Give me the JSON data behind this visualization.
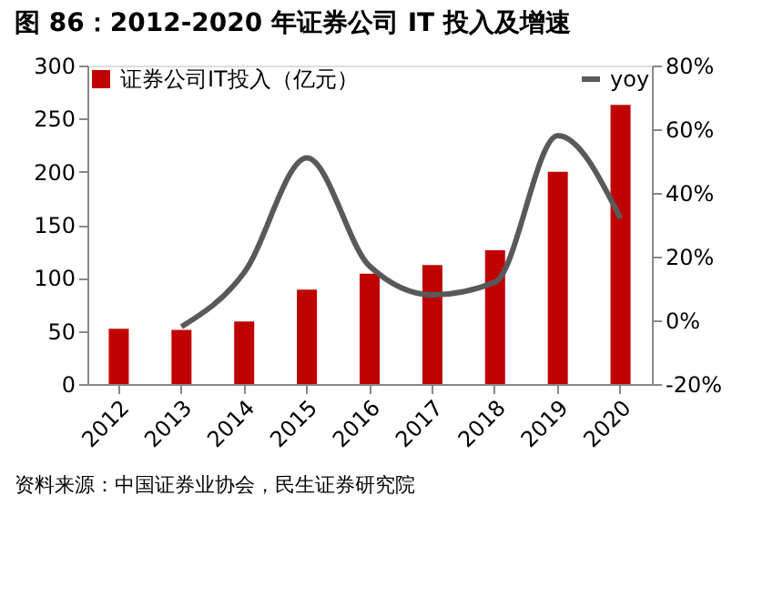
{
  "chart_data": {
    "type": "bar",
    "title": "图 86：2012-2020 年证券公司 IT 投入及增速",
    "categories": [
      "2012",
      "2013",
      "2014",
      "2015",
      "2016",
      "2017",
      "2018",
      "2019",
      "2020"
    ],
    "series": [
      {
        "name": "证券公司IT投入（亿元）",
        "color": "#c00000",
        "values": [
          52,
          51,
          59,
          89,
          104,
          112,
          126,
          200,
          263
        ]
      },
      {
        "name": "yoy",
        "type": "line",
        "axis": "y2",
        "color": "#595959",
        "values": [
          null,
          -2,
          15,
          51,
          17,
          8,
          12,
          58,
          32
        ]
      }
    ],
    "ylim": [
      0,
      300
    ],
    "yticks": [
      0,
      50,
      100,
      150,
      200,
      250,
      300
    ],
    "y2lim": [
      -20,
      80
    ],
    "y2ticks": [
      {
        "value": -20,
        "label": "-20%"
      },
      {
        "value": 0,
        "label": "0%"
      },
      {
        "value": 20,
        "label": "20%"
      },
      {
        "value": 40,
        "label": "40%"
      },
      {
        "value": 60,
        "label": "60%"
      },
      {
        "value": 80,
        "label": "80%"
      }
    ],
    "grid": false,
    "legend": "top",
    "annotations": [
      "资料来源：中国证券业协会，民生证券研究院"
    ]
  }
}
